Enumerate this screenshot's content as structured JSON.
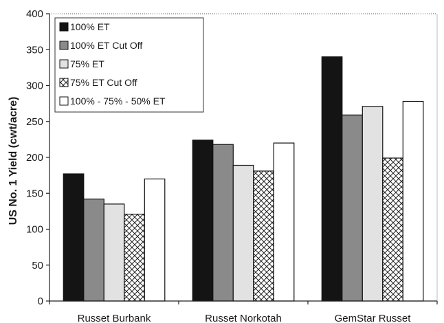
{
  "chart_data": {
    "type": "bar",
    "title": "",
    "xlabel": "",
    "ylabel": "US No. 1 Yield (cwt/acre)",
    "ylim": [
      0,
      400
    ],
    "yticks": [
      0,
      50,
      100,
      150,
      200,
      250,
      300,
      350,
      400
    ],
    "grid": false,
    "legend_position": "top-left",
    "categories": [
      "Russet Burbank",
      "Russet Norkotah",
      "GemStar Russet"
    ],
    "series": [
      {
        "name": "100% ET",
        "values": [
          177,
          224,
          340
        ],
        "color": "#141414",
        "pattern": "solid"
      },
      {
        "name": "100% ET Cut Off",
        "values": [
          142,
          218,
          259
        ],
        "color": "#8a8a8a",
        "pattern": "solid"
      },
      {
        "name": "75% ET",
        "values": [
          135,
          189,
          271
        ],
        "color": "#e2e2e2",
        "pattern": "solid"
      },
      {
        "name": "75% ET Cut Off",
        "values": [
          121,
          181,
          199
        ],
        "color": "#ffffff",
        "pattern": "crosshatch"
      },
      {
        "name": "100% - 75% - 50% ET",
        "values": [
          170,
          220,
          278
        ],
        "color": "#ffffff",
        "pattern": "solid"
      }
    ]
  }
}
